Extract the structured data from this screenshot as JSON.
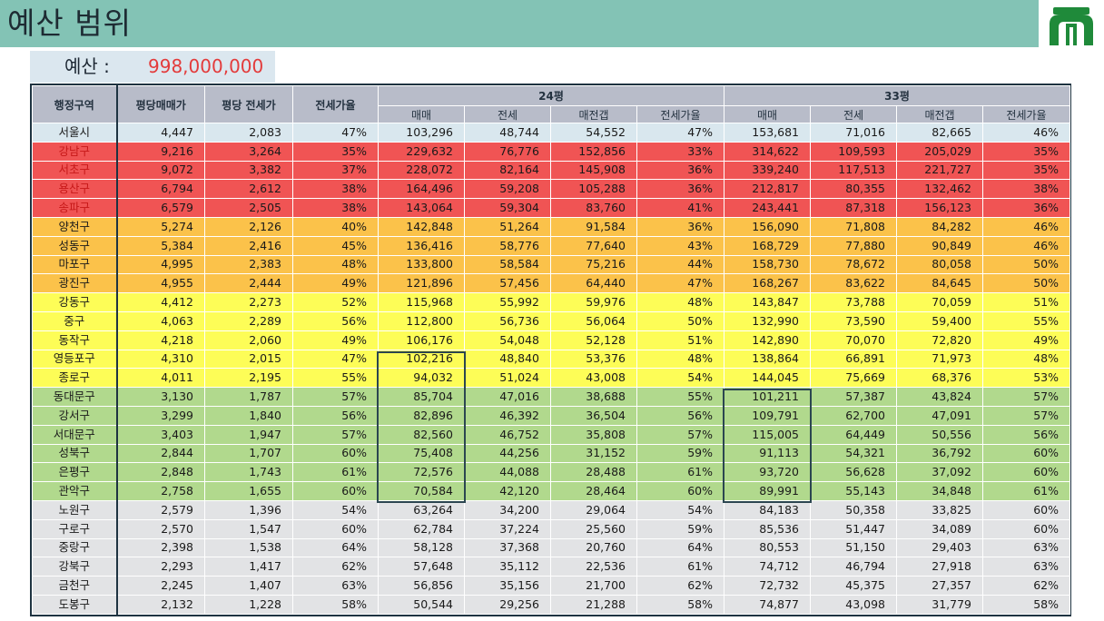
{
  "header": {
    "title": "예산 범위"
  },
  "budget": {
    "label": "예산 :",
    "value": "998,000,000"
  },
  "table": {
    "headers": {
      "district": "행정구역",
      "price_per_pyeong": "평당매매가",
      "jeonse_per_pyeong": "평당 전세가",
      "jeonse_ratio": "전세가율",
      "group_24": "24평",
      "group_33": "33평",
      "sub": [
        "매매",
        "전세",
        "매전갭",
        "전세가율"
      ]
    },
    "rows": [
      {
        "tier": "seoul",
        "cells": [
          "서울시",
          "4,447",
          "2,083",
          "47%",
          "103,296",
          "48,744",
          "54,552",
          "47%",
          "153,681",
          "71,016",
          "82,665",
          "46%"
        ]
      },
      {
        "tier": "red",
        "cells": [
          "강남구",
          "9,216",
          "3,264",
          "35%",
          "229,632",
          "76,776",
          "152,856",
          "33%",
          "314,622",
          "109,593",
          "205,029",
          "35%"
        ]
      },
      {
        "tier": "red",
        "cells": [
          "서초구",
          "9,072",
          "3,382",
          "37%",
          "228,072",
          "82,164",
          "145,908",
          "36%",
          "339,240",
          "117,513",
          "221,727",
          "35%"
        ]
      },
      {
        "tier": "red",
        "cells": [
          "용산구",
          "6,794",
          "2,612",
          "38%",
          "164,496",
          "59,208",
          "105,288",
          "36%",
          "212,817",
          "80,355",
          "132,462",
          "38%"
        ]
      },
      {
        "tier": "red",
        "cells": [
          "송파구",
          "6,579",
          "2,505",
          "38%",
          "143,064",
          "59,304",
          "83,760",
          "41%",
          "243,441",
          "87,318",
          "156,123",
          "36%"
        ]
      },
      {
        "tier": "orange",
        "cells": [
          "양천구",
          "5,274",
          "2,126",
          "40%",
          "142,848",
          "51,264",
          "91,584",
          "36%",
          "156,090",
          "71,808",
          "84,282",
          "46%"
        ]
      },
      {
        "tier": "orange",
        "cells": [
          "성동구",
          "5,384",
          "2,416",
          "45%",
          "136,416",
          "58,776",
          "77,640",
          "43%",
          "168,729",
          "77,880",
          "90,849",
          "46%"
        ]
      },
      {
        "tier": "orange",
        "cells": [
          "마포구",
          "4,995",
          "2,383",
          "48%",
          "133,800",
          "58,584",
          "75,216",
          "44%",
          "158,730",
          "78,672",
          "80,058",
          "50%"
        ]
      },
      {
        "tier": "orange",
        "cells": [
          "광진구",
          "4,955",
          "2,444",
          "49%",
          "121,896",
          "57,456",
          "64,440",
          "47%",
          "168,267",
          "83,622",
          "84,645",
          "50%"
        ]
      },
      {
        "tier": "yellow",
        "cells": [
          "강동구",
          "4,412",
          "2,273",
          "52%",
          "115,968",
          "55,992",
          "59,976",
          "48%",
          "143,847",
          "73,788",
          "70,059",
          "51%"
        ]
      },
      {
        "tier": "yellow",
        "cells": [
          "중구",
          "4,063",
          "2,289",
          "56%",
          "112,800",
          "56,736",
          "56,064",
          "50%",
          "132,990",
          "73,590",
          "59,400",
          "55%"
        ]
      },
      {
        "tier": "yellow",
        "cells": [
          "동작구",
          "4,218",
          "2,060",
          "49%",
          "106,176",
          "54,048",
          "52,128",
          "51%",
          "142,890",
          "70,070",
          "72,820",
          "49%"
        ]
      },
      {
        "tier": "yellow",
        "cells": [
          "영등포구",
          "4,310",
          "2,015",
          "47%",
          "102,216",
          "48,840",
          "53,376",
          "48%",
          "138,864",
          "66,891",
          "71,973",
          "48%"
        ]
      },
      {
        "tier": "yellow",
        "cells": [
          "종로구",
          "4,011",
          "2,195",
          "55%",
          "94,032",
          "51,024",
          "43,008",
          "54%",
          "144,045",
          "75,669",
          "68,376",
          "53%"
        ]
      },
      {
        "tier": "green",
        "cells": [
          "동대문구",
          "3,130",
          "1,787",
          "57%",
          "85,704",
          "47,016",
          "38,688",
          "55%",
          "101,211",
          "57,387",
          "43,824",
          "57%"
        ]
      },
      {
        "tier": "green",
        "cells": [
          "강서구",
          "3,299",
          "1,840",
          "56%",
          "82,896",
          "46,392",
          "36,504",
          "56%",
          "109,791",
          "62,700",
          "47,091",
          "57%"
        ]
      },
      {
        "tier": "green",
        "cells": [
          "서대문구",
          "3,403",
          "1,947",
          "57%",
          "82,560",
          "46,752",
          "35,808",
          "57%",
          "115,005",
          "64,449",
          "50,556",
          "56%"
        ]
      },
      {
        "tier": "green",
        "cells": [
          "성북구",
          "2,844",
          "1,707",
          "60%",
          "75,408",
          "44,256",
          "31,152",
          "59%",
          "91,113",
          "54,321",
          "36,792",
          "60%"
        ]
      },
      {
        "tier": "green",
        "cells": [
          "은평구",
          "2,848",
          "1,743",
          "61%",
          "72,576",
          "44,088",
          "28,488",
          "61%",
          "93,720",
          "56,628",
          "37,092",
          "60%"
        ]
      },
      {
        "tier": "green",
        "cells": [
          "관악구",
          "2,758",
          "1,655",
          "60%",
          "70,584",
          "42,120",
          "28,464",
          "60%",
          "89,991",
          "55,143",
          "34,848",
          "61%"
        ]
      },
      {
        "tier": "gray",
        "cells": [
          "노원구",
          "2,579",
          "1,396",
          "54%",
          "63,264",
          "34,200",
          "29,064",
          "54%",
          "84,183",
          "50,358",
          "33,825",
          "60%"
        ]
      },
      {
        "tier": "gray",
        "cells": [
          "구로구",
          "2,570",
          "1,547",
          "60%",
          "62,784",
          "37,224",
          "25,560",
          "59%",
          "85,536",
          "51,447",
          "34,089",
          "60%"
        ]
      },
      {
        "tier": "gray",
        "cells": [
          "중랑구",
          "2,398",
          "1,538",
          "64%",
          "58,128",
          "37,368",
          "20,760",
          "64%",
          "80,553",
          "51,150",
          "29,403",
          "63%"
        ]
      },
      {
        "tier": "gray",
        "cells": [
          "강북구",
          "2,293",
          "1,417",
          "62%",
          "57,648",
          "35,112",
          "22,536",
          "61%",
          "74,712",
          "46,794",
          "27,918",
          "63%"
        ]
      },
      {
        "tier": "gray",
        "cells": [
          "금천구",
          "2,245",
          "1,407",
          "63%",
          "56,856",
          "35,156",
          "21,700",
          "62%",
          "72,732",
          "45,375",
          "27,357",
          "62%"
        ]
      },
      {
        "tier": "gray",
        "cells": [
          "도봉구",
          "2,132",
          "1,228",
          "58%",
          "50,544",
          "29,256",
          "21,288",
          "58%",
          "74,877",
          "43,098",
          "31,779",
          "58%"
        ]
      }
    ]
  },
  "colors": {
    "header_bar": "#83c3b5",
    "tier_red": "#f05454",
    "tier_orange": "#fbc24a",
    "tier_yellow": "#fdfd57",
    "tier_green": "#b1d98d",
    "tier_gray": "#e2e3e5",
    "budget_value": "#e33b3b"
  },
  "icons": {
    "logo": "university-gate-logo"
  }
}
